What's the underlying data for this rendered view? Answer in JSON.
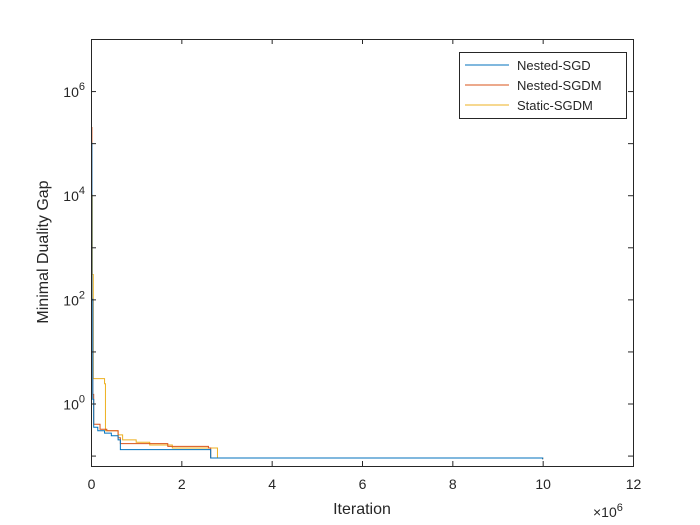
{
  "chart_data": {
    "type": "line",
    "xlabel": "Iteration",
    "ylabel": "Minimal Duality Gap",
    "x_multiplier_base": "×10",
    "x_multiplier_exp": "6",
    "xlim": [
      0,
      12
    ],
    "ylim_log10": [
      -1.2,
      7.0
    ],
    "y_scale": "log",
    "grid": false,
    "legend_position": "top-right",
    "x_ticks": [
      {
        "value": 0,
        "label": "0"
      },
      {
        "value": 2,
        "label": "2"
      },
      {
        "value": 4,
        "label": "4"
      },
      {
        "value": 6,
        "label": "6"
      },
      {
        "value": 8,
        "label": "8"
      },
      {
        "value": 10,
        "label": "10"
      },
      {
        "value": 12,
        "label": "12"
      }
    ],
    "y_ticks": [
      {
        "exp": 0,
        "base": "10",
        "sup": "0"
      },
      {
        "exp": 2,
        "base": "10",
        "sup": "2"
      },
      {
        "exp": 4,
        "base": "10",
        "sup": "4"
      },
      {
        "exp": 6,
        "base": "10",
        "sup": "6"
      }
    ],
    "series": [
      {
        "name": "Nested-SGD",
        "color": "#0072BD",
        "points": [
          [
            0,
            100000.0
          ],
          [
            0.02,
            100
          ],
          [
            0.04,
            1.2
          ],
          [
            0.06,
            0.35
          ],
          [
            0.15,
            0.3
          ],
          [
            0.3,
            0.27
          ],
          [
            0.45,
            0.24
          ],
          [
            0.6,
            0.2
          ],
          [
            0.65,
            0.13
          ],
          [
            2.6,
            0.13
          ],
          [
            2.65,
            0.09
          ],
          [
            10,
            0.085
          ]
        ]
      },
      {
        "name": "Nested-SGDM",
        "color": "#D95319",
        "points": [
          [
            0,
            200000.0
          ],
          [
            0.02,
            100
          ],
          [
            0.04,
            1.5
          ],
          [
            0.06,
            0.4
          ],
          [
            0.2,
            0.32
          ],
          [
            0.35,
            0.3
          ],
          [
            0.6,
            0.22
          ],
          [
            0.65,
            0.17
          ],
          [
            1.7,
            0.15
          ],
          [
            2.6,
            0.14
          ],
          [
            2.65,
            0.09
          ],
          [
            10,
            0.085
          ]
        ]
      },
      {
        "name": "Static-SGDM",
        "color": "#EDB120",
        "points": [
          [
            0,
            3000000.0
          ],
          [
            0.01,
            10000.0
          ],
          [
            0.03,
            300
          ],
          [
            0.05,
            3
          ],
          [
            0.2,
            3
          ],
          [
            0.3,
            2.4
          ],
          [
            0.32,
            0.3
          ],
          [
            0.6,
            0.25
          ],
          [
            0.7,
            0.2
          ],
          [
            1.0,
            0.18
          ],
          [
            1.3,
            0.16
          ],
          [
            1.8,
            0.14
          ],
          [
            2.6,
            0.14
          ],
          [
            2.8,
            0.09
          ],
          [
            10,
            0.085
          ]
        ]
      }
    ]
  }
}
